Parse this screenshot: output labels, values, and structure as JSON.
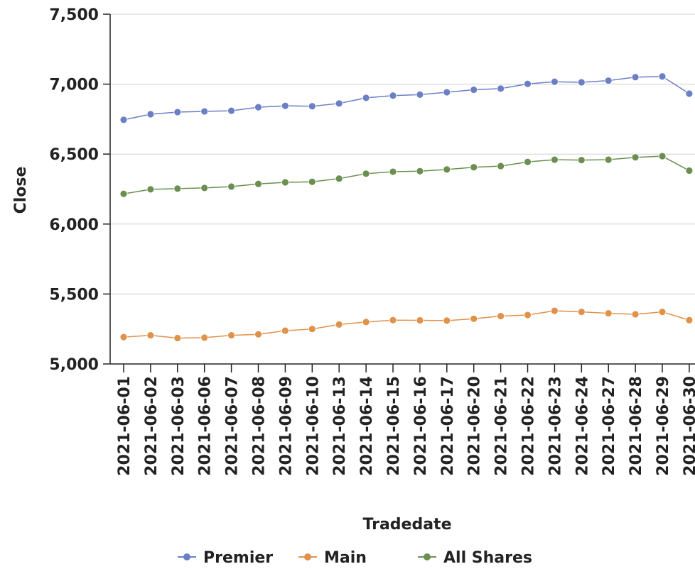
{
  "chart_data": {
    "type": "line",
    "title": "",
    "xlabel": "Tradedate",
    "ylabel": "Close",
    "ylim": [
      5000,
      7500
    ],
    "yticks": [
      5000,
      5500,
      6000,
      6500,
      7000,
      7500
    ],
    "ytick_labels": [
      "5,000",
      "5,500",
      "6,000",
      "6,500",
      "7,000",
      "7,500"
    ],
    "grid": "horizontal",
    "legend_position": "bottom",
    "x": [
      "2021-06-01",
      "2021-06-02",
      "2021-06-03",
      "2021-06-06",
      "2021-06-07",
      "2021-06-08",
      "2021-06-09",
      "2021-06-10",
      "2021-06-13",
      "2021-06-14",
      "2021-06-15",
      "2021-06-16",
      "2021-06-17",
      "2021-06-20",
      "2021-06-21",
      "2021-06-22",
      "2021-06-23",
      "2021-06-24",
      "2021-06-27",
      "2021-06-28",
      "2021-06-29",
      "2021-06-30"
    ],
    "series": [
      {
        "name": "Premier",
        "color": "#6b7fc4",
        "values": [
          6745,
          6785,
          6800,
          6805,
          6810,
          6835,
          6845,
          6842,
          6862,
          6902,
          6918,
          6925,
          6942,
          6960,
          6968,
          7002,
          7017,
          7013,
          7025,
          7050,
          7055,
          6932
        ]
      },
      {
        "name": "Main",
        "color": "#e0924a",
        "values": [
          5192,
          5205,
          5185,
          5188,
          5205,
          5212,
          5238,
          5250,
          5282,
          5300,
          5313,
          5312,
          5310,
          5323,
          5342,
          5350,
          5380,
          5372,
          5362,
          5355,
          5372,
          5313
        ]
      },
      {
        "name": "All Shares",
        "color": "#6b8f50",
        "values": [
          6216,
          6248,
          6253,
          6258,
          6268,
          6287,
          6298,
          6302,
          6325,
          6360,
          6374,
          6378,
          6390,
          6406,
          6414,
          6444,
          6460,
          6457,
          6460,
          6477,
          6485,
          6382
        ]
      }
    ]
  }
}
